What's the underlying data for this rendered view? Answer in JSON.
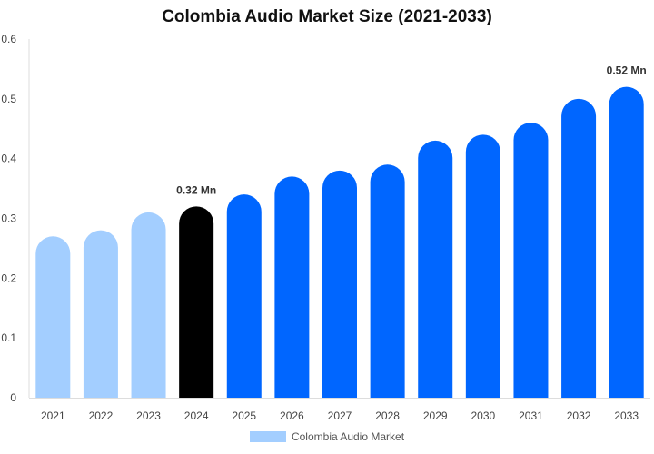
{
  "chart_data": {
    "type": "bar",
    "title": "Colombia Audio Market Size (2021-2033)",
    "categories": [
      "2021",
      "2022",
      "2023",
      "2024",
      "2025",
      "2026",
      "2027",
      "2028",
      "2029",
      "2030",
      "2031",
      "2032",
      "2033"
    ],
    "series": [
      {
        "name": "Colombia Audio Market",
        "values": [
          0.27,
          0.28,
          0.31,
          0.32,
          0.34,
          0.37,
          0.38,
          0.39,
          0.43,
          0.44,
          0.46,
          0.5,
          0.52
        ]
      }
    ],
    "bar_colors": [
      "#a3ceff",
      "#a3ceff",
      "#a3ceff",
      "#000000",
      "#0066ff",
      "#0066ff",
      "#0066ff",
      "#0066ff",
      "#0066ff",
      "#0066ff",
      "#0066ff",
      "#0066ff",
      "#0066ff"
    ],
    "data_labels": [
      {
        "category": "2024",
        "text": "0.32 Mn"
      },
      {
        "category": "2033",
        "text": "0.52 Mn"
      }
    ],
    "yticks": [
      "0",
      "0.1",
      "0.2",
      "0.3",
      "0.4",
      "0.5",
      "0.6"
    ],
    "ylim": [
      0,
      0.6
    ],
    "xlabel": "",
    "ylabel": "",
    "grid": false,
    "legend_position": "bottom-center",
    "legend_color": "#a3ceff"
  }
}
